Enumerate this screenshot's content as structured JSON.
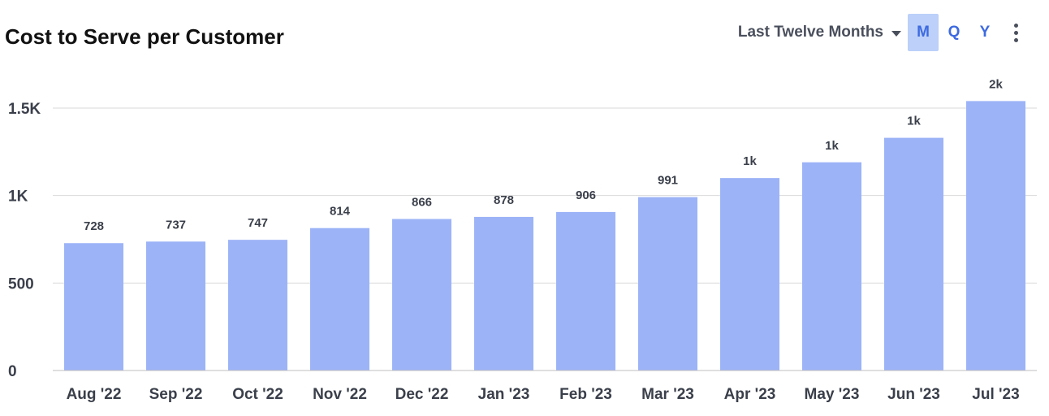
{
  "header": {
    "title": "Cost to Serve per Customer",
    "period_label": "Last Twelve Months",
    "granularity": [
      {
        "label": "M",
        "active": true
      },
      {
        "label": "Q",
        "active": false
      },
      {
        "label": "Y",
        "active": false
      }
    ],
    "menu_icon": "more-vertical-icon"
  },
  "colors": {
    "bar": "#9cb3f7",
    "grid": "#d9d9d9",
    "accent": "#3d6ae0"
  },
  "chart_data": {
    "type": "bar",
    "title": "Cost to Serve per Customer",
    "xlabel": "",
    "ylabel": "",
    "categories": [
      "Aug '22",
      "Sep '22",
      "Oct '22",
      "Nov '22",
      "Dec '22",
      "Jan '23",
      "Feb '23",
      "Mar '23",
      "Apr '23",
      "May '23",
      "Jun '23",
      "Jul '23"
    ],
    "values": [
      728,
      737,
      747,
      814,
      866,
      878,
      906,
      991,
      1100,
      1190,
      1330,
      1540
    ],
    "data_labels": [
      "728",
      "737",
      "747",
      "814",
      "866",
      "878",
      "906",
      "991",
      "1k",
      "1k",
      "1k",
      "2k"
    ],
    "ylim": [
      0,
      1500
    ],
    "yticks": [
      {
        "value": 0,
        "label": "0"
      },
      {
        "value": 500,
        "label": "500"
      },
      {
        "value": 1000,
        "label": "1K"
      },
      {
        "value": 1500,
        "label": "1.5K"
      }
    ],
    "grid": true,
    "legend": "none"
  }
}
